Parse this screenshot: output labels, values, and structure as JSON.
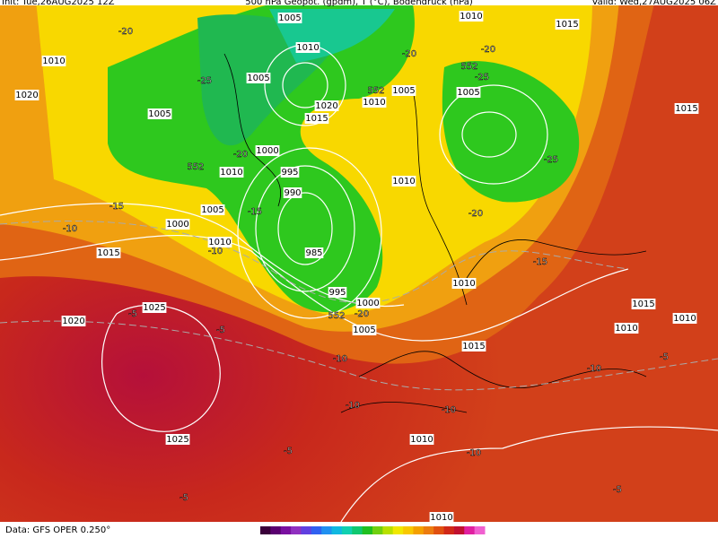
{
  "header": {
    "init": "Init: Tue,26AUG2025 12Z",
    "title": "500 hPa Geopot. (gpdm), T (°C), Bodendruck (hPa)",
    "valid": "Valid: Wed,27AUG2025 06Z"
  },
  "pressure_labels": [
    "1005",
    "1010",
    "1005",
    "1020",
    "1015",
    "1000",
    "1010",
    "995",
    "990",
    "985",
    "995",
    "1000",
    "1005",
    "1010",
    "1010",
    "1005",
    "1005",
    "1010",
    "1015",
    "1015",
    "1020",
    "1010",
    "1005",
    "1005",
    "1000",
    "1010",
    "1015",
    "1020",
    "1025",
    "1025",
    "1010",
    "1015",
    "1010",
    "1015",
    "1010",
    "1010",
    "1010"
  ],
  "temperature_labels": [
    "-20",
    "-25",
    "-20",
    "-20",
    "-25",
    "-25",
    "-20",
    "-15",
    "-10",
    "-10",
    "-15",
    "-20",
    "-15",
    "-20",
    "-5",
    "-5",
    "-10",
    "-10",
    "-10",
    "-10",
    "-5",
    "-5",
    "-5",
    "-5",
    "-10"
  ],
  "geopotential_labels": [
    "552",
    "552",
    "552",
    "552"
  ],
  "footer": {
    "source": "Data: GFS OPER 0.250°"
  }
}
